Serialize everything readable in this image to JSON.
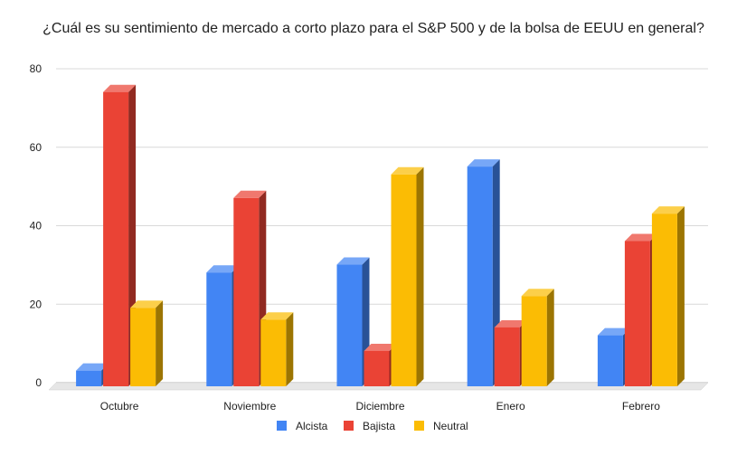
{
  "chart_data": {
    "type": "bar",
    "title": "¿Cuál es su sentimiento de mercado a corto plazo para el S&P 500 y de la bolsa de EEUU en general?",
    "categories": [
      "Octubre",
      "Noviembre",
      "Diciembre",
      "Enero",
      "Febrero"
    ],
    "series": [
      {
        "name": "Alcista",
        "color": "#4285F4",
        "values": [
          4,
          29,
          31,
          56,
          13
        ]
      },
      {
        "name": "Bajista",
        "color": "#EA4335",
        "values": [
          75,
          48,
          9,
          15,
          37
        ]
      },
      {
        "name": "Neutral",
        "color": "#FBBC04",
        "values": [
          20,
          17,
          54,
          23,
          44
        ]
      }
    ],
    "yticks": [
      0,
      20,
      40,
      60,
      80
    ],
    "ylim": [
      0,
      80
    ],
    "grid": true,
    "legend_position": "bottom",
    "style": "3d"
  }
}
